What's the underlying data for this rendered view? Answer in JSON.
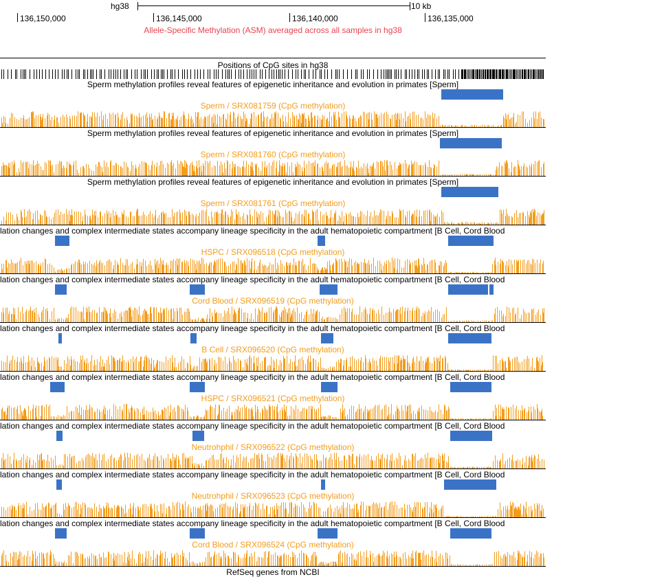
{
  "ruler": {
    "assembly": "hg38",
    "scale_label": "10 kb",
    "coords": [
      {
        "label": "136,150,000"
      },
      {
        "label": "136,145,000"
      },
      {
        "label": "136,140,000"
      },
      {
        "label": "136,135,000"
      }
    ],
    "asm_track_title": "Allele-Specific Methylation (ASM) averaged across all samples in hg38"
  },
  "cpg_track": {
    "title": "Positions of CpG sites in hg38"
  },
  "sperm_group_title": "Sperm methylation profiles reveal features of epigenetic inheritance and evolution in primates [Sperm]",
  "hema_group_title": "lation changes and complex intermediate states accompany lineage specificity in the adult hematopoietic compartment [B Cell, Cord Blood",
  "tracks": [
    {
      "group": "Sperm methylation profiles reveal features of epigenetic inheritance and evolution in primates [Sperm]",
      "label": "Sperm / SRX081759 (CpG methylation)"
    },
    {
      "group": "Sperm methylation profiles reveal features of epigenetic inheritance and evolution in primates [Sperm]",
      "label": "Sperm / SRX081760 (CpG methylation)"
    },
    {
      "group": "Sperm methylation profiles reveal features of epigenetic inheritance and evolution in primates [Sperm]",
      "label": "Sperm / SRX081761 (CpG methylation)"
    },
    {
      "group": "lation changes and complex intermediate states accompany lineage specificity in the adult hematopoietic compartment [B Cell, Cord Blood",
      "label": "HSPC / SRX096518 (CpG methylation)"
    },
    {
      "group": "lation changes and complex intermediate states accompany lineage specificity in the adult hematopoietic compartment [B Cell, Cord Blood",
      "label": "Cord Blood / SRX096519 (CpG methylation)"
    },
    {
      "group": "lation changes and complex intermediate states accompany lineage specificity in the adult hematopoietic compartment [B Cell, Cord Blood",
      "label": "B Cell / SRX096520 (CpG methylation)"
    },
    {
      "group": "lation changes and complex intermediate states accompany lineage specificity in the adult hematopoietic compartment [B Cell, Cord Blood",
      "label": "HSPC / SRX096521 (CpG methylation)"
    },
    {
      "group": "lation changes and complex intermediate states accompany lineage specificity in the adult hematopoietic compartment [B Cell, Cord Blood",
      "label": "Neutrohphil / SRX096522 (CpG methylation)"
    },
    {
      "group": "lation changes and complex intermediate states accompany lineage specificity in the adult hematopoietic compartment [B Cell, Cord Blood",
      "label": "Neutrohphil / SRX096523 (CpG methylation)"
    },
    {
      "group": "lation changes and complex intermediate states accompany lineage specificity in the adult hematopoietic compartment [B Cell, Cord Blood",
      "label": "Cord Blood / SRX096524 (CpG methylation)"
    }
  ],
  "refseq_title": "RefSeq genes from NCBI",
  "colors": {
    "methylation": "#f39c1c",
    "hmr_block": "#3a73c6",
    "asm_title": "#e8434f",
    "ink": "#000000"
  }
}
